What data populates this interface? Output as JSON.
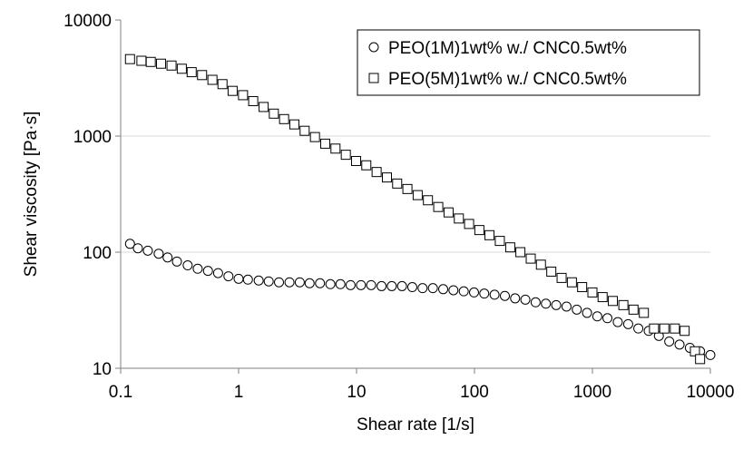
{
  "chart_data": {
    "type": "scatter",
    "title": "",
    "xlabel": "Shear rate [1/s]",
    "ylabel": "Shear viscosity [Pa·s]",
    "xscale": "log",
    "yscale": "log",
    "xlim": [
      0.1,
      10000
    ],
    "ylim": [
      10,
      10000
    ],
    "x_ticks": [
      {
        "value": 0.1,
        "label": "0.1"
      },
      {
        "value": 1,
        "label": "1"
      },
      {
        "value": 10,
        "label": "10"
      },
      {
        "value": 100,
        "label": "100"
      },
      {
        "value": 1000,
        "label": "1000"
      },
      {
        "value": 10000,
        "label": "10000"
      }
    ],
    "y_ticks": [
      {
        "value": 10,
        "label": "10"
      },
      {
        "value": 100,
        "label": "100"
      },
      {
        "value": 1000,
        "label": "1000"
      },
      {
        "value": 10000,
        "label": "10000"
      }
    ],
    "grid": "horizontal",
    "legend_position": "top-right",
    "series": [
      {
        "name": "PEO(1M)1wt% w./ CNC0.5wt%",
        "marker": "circle",
        "x": [
          0.12,
          0.14,
          0.17,
          0.21,
          0.25,
          0.3,
          0.37,
          0.45,
          0.55,
          0.67,
          0.82,
          1.0,
          1.2,
          1.48,
          1.8,
          2.2,
          2.7,
          3.3,
          4.0,
          4.9,
          6.0,
          7.3,
          8.9,
          10.9,
          13.3,
          16.3,
          19.9,
          24.3,
          29.7,
          36.3,
          44.4,
          54.3,
          66.3,
          81.1,
          99.1,
          121,
          148,
          181,
          221,
          270,
          330,
          403,
          493,
          603,
          737,
          900,
          1100,
          1340,
          1640,
          2010,
          2450,
          3000,
          3660,
          4480,
          5480,
          6700,
          8180,
          10000
        ],
        "y": [
          118,
          108,
          103,
          97,
          90,
          83,
          77,
          72,
          69,
          66,
          62,
          59,
          58,
          57,
          56,
          55,
          55,
          55,
          54,
          54,
          53,
          53,
          52,
          52,
          52,
          51,
          51,
          51,
          50,
          49,
          49,
          48,
          47,
          46,
          45,
          44,
          43,
          42,
          40,
          39,
          37,
          36,
          35,
          34,
          32,
          30,
          28,
          27,
          25,
          24,
          22,
          21,
          19,
          17,
          16,
          15,
          14,
          13
        ],
        "x_sparse_note": ""
      },
      {
        "name": "PEO(5M)1wt% w./ CNC0.5wt%",
        "marker": "square",
        "x": [
          0.12,
          0.15,
          0.18,
          0.22,
          0.27,
          0.33,
          0.4,
          0.49,
          0.6,
          0.73,
          0.89,
          1.09,
          1.33,
          1.63,
          1.99,
          2.43,
          2.97,
          3.63,
          4.44,
          5.43,
          6.63,
          8.11,
          9.91,
          12.1,
          14.8,
          18.1,
          22.1,
          27.0,
          33.0,
          40.3,
          49.3,
          60.3,
          73.7,
          90.0,
          110,
          134,
          164,
          201,
          245,
          300,
          366,
          448,
          548,
          670,
          818,
          1000,
          1220,
          1490,
          1830,
          2230,
          2730,
          3330,
          4070,
          5000,
          6050,
          7400,
          8180
        ],
        "y": [
          4600,
          4450,
          4350,
          4200,
          4050,
          3800,
          3550,
          3350,
          3050,
          2800,
          2450,
          2250,
          2000,
          1780,
          1560,
          1400,
          1260,
          1110,
          980,
          860,
          780,
          690,
          610,
          560,
          490,
          440,
          390,
          350,
          310,
          280,
          245,
          220,
          195,
          175,
          155,
          140,
          125,
          110,
          100,
          88,
          78,
          68,
          60,
          55,
          50,
          45,
          41,
          38,
          35,
          32,
          30,
          22,
          22,
          22,
          21,
          14,
          12
        ]
      }
    ]
  }
}
